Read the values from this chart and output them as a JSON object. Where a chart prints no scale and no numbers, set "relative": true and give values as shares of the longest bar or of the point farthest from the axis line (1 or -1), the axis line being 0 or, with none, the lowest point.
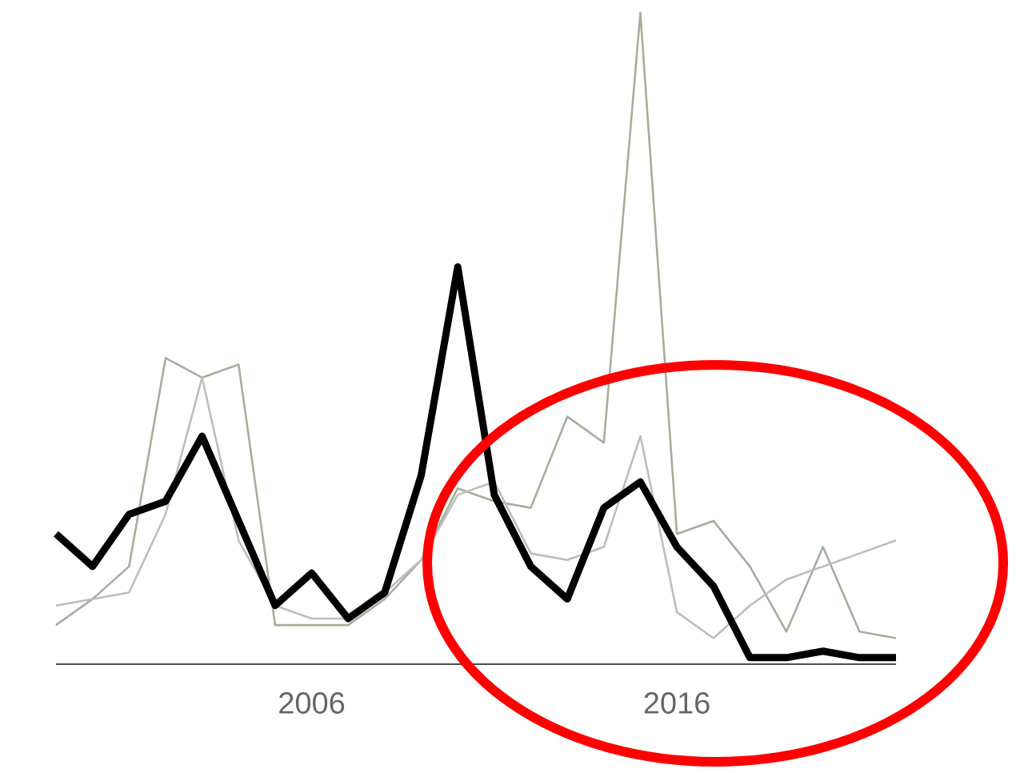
{
  "chart_data": {
    "type": "line",
    "relative": true,
    "x": [
      1999,
      2000,
      2001,
      2002,
      2003,
      2004,
      2005,
      2006,
      2007,
      2008,
      2009,
      2010,
      2011,
      2012,
      2013,
      2014,
      2015,
      2016,
      2017,
      2018,
      2019,
      2020,
      2021,
      2022
    ],
    "xlim": [
      1999,
      2022
    ],
    "xticks": [
      2006,
      2016
    ],
    "series": [
      {
        "color": "#a3af9a",
        "values": [
          0.06,
          0.1,
          0.15,
          0.47,
          0.44,
          0.46,
          0.06,
          0.06,
          0.06,
          0.1,
          0.16,
          0.27,
          0.25,
          0.24,
          0.38,
          0.34,
          1,
          0.2,
          0.22,
          0.15,
          0.05,
          0.18,
          0.05,
          0.04
        ]
      },
      {
        "color": "#bdbdbd",
        "values": [
          0.09,
          0.1,
          0.11,
          0.23,
          0.44,
          0.19,
          0.09,
          0.07,
          0.07,
          0.11,
          0.16,
          0.26,
          0.28,
          0.17,
          0.16,
          0.18,
          0.35,
          0.08,
          0.04,
          0.09,
          0.13,
          0.15,
          0.17,
          0.19
        ]
      },
      {
        "color": "#000000",
        "values": [
          0.2,
          0.15,
          0.23,
          0.25,
          0.35,
          0.22,
          0.09,
          0.14,
          0.07,
          0.11,
          0.29,
          0.61,
          0.26,
          0.15,
          0.1,
          0.24,
          0.28,
          0.18,
          0.12,
          0.01,
          0.01,
          0.02,
          0.01,
          0.01
        ]
      }
    ]
  }
}
